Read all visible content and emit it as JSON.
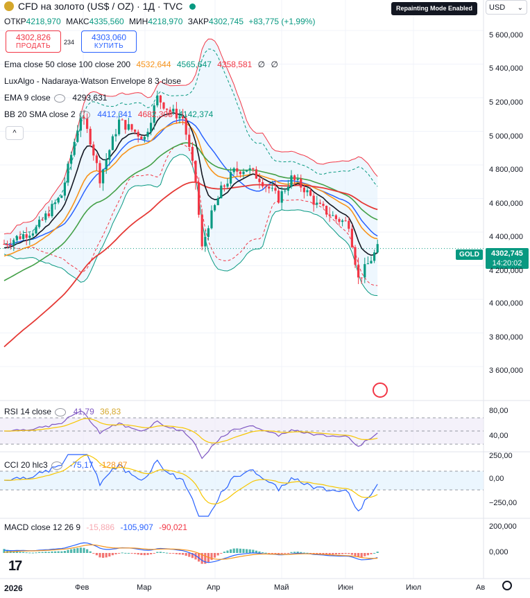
{
  "header": {
    "title": "CFD на золото (US$ / OZ) · 1Д · TVC",
    "status_color": "#089981",
    "ohlc": [
      {
        "label": "ОТКР",
        "value": "4218,970"
      },
      {
        "label": "МАКС",
        "value": "4335,560"
      },
      {
        "label": "МИН",
        "value": "4218,970"
      },
      {
        "label": "ЗАКР",
        "value": "4302,745"
      }
    ],
    "change": "+83,775 (+1,99%)"
  },
  "trade": {
    "sell_price": "4302,826",
    "sell_label": "ПРОДАТЬ",
    "spread": "234",
    "buy_price": "4303,060",
    "buy_label": "КУПИТЬ"
  },
  "indicators": [
    {
      "name": "Ema close 50 close 100 close 200",
      "values": [
        {
          "v": "4532,644",
          "color": "#f7931a"
        },
        {
          "v": "4565,647",
          "color": "#089981"
        },
        {
          "v": "4358,581",
          "color": "#f23645"
        },
        {
          "v": "∅",
          "color": "#131722"
        },
        {
          "v": "∅",
          "color": "#131722"
        }
      ]
    },
    {
      "name": "LuxAlgo - Nadaraya-Watson Envelope 8 3 close",
      "values": []
    },
    {
      "name": "EMA 9 close",
      "values": [
        {
          "v": "4293,631",
          "color": "#131722"
        }
      ]
    },
    {
      "name": "BB 20 SMA close 2",
      "values": [
        {
          "v": "4412,341",
          "color": "#2962ff"
        },
        {
          "v": "4682,308",
          "color": "#f23645"
        },
        {
          "v": "4142,374",
          "color": "#089981"
        }
      ]
    }
  ],
  "overlay": {
    "repaint_badge": "Repainting Mode Enabled",
    "currency": "USD",
    "symbol_tag": "GOLD"
  },
  "last_price": {
    "value": "4302,745",
    "countdown": "14:20:02"
  },
  "price_axis": [
    "5 600,000",
    "5 400,000",
    "5 200,000",
    "5 000,000",
    "4 800,000",
    "4 600,000",
    "4 400,000",
    "4 200,000",
    "4 000,000",
    "3 800,000",
    "3 600,000"
  ],
  "time_axis": [
    "2026",
    "Фев",
    "Мар",
    "Апр",
    "Май",
    "Июн",
    "Июл",
    "Ав"
  ],
  "rsi": {
    "name": "RSI 14 close",
    "values": [
      {
        "v": "41,79",
        "color": "#7e57c2"
      },
      {
        "v": "36,83",
        "color": "#f7c600"
      }
    ],
    "axis": [
      "80,00",
      "40,00"
    ]
  },
  "cci": {
    "name": "CCI 20 hlc3",
    "values": [
      {
        "v": "-75,17",
        "color": "#2962ff"
      },
      {
        "v": "-128,87",
        "color": "#f7931a"
      }
    ],
    "axis": [
      "250,00",
      "0,00",
      "−250,00"
    ]
  },
  "macd": {
    "name": "MACD close 12 26 9",
    "values": [
      {
        "v": "-15,886",
        "color": "#f23645"
      },
      {
        "v": "-105,907",
        "color": "#2962ff"
      },
      {
        "v": "-90,021",
        "color": "#f7931a"
      }
    ],
    "axis": [
      "200,000",
      "0,000"
    ]
  },
  "chart_data": {
    "type": "candlestick",
    "price_range": [
      3500,
      5700
    ],
    "series": [
      {
        "name": "Ema close 50",
        "color": "#f7931a",
        "last": 4532.644
      },
      {
        "name": "Ema close 100",
        "color": "#089981",
        "last": 4565.647
      },
      {
        "name": "Ema close 200",
        "color": "#f23645",
        "last": 4358.581
      },
      {
        "name": "EMA 9 close",
        "color": "#131722",
        "last": 4293.631
      },
      {
        "name": "BB 20 SMA close 2",
        "color": "#2962ff",
        "last": 4412.341
      }
    ]
  }
}
